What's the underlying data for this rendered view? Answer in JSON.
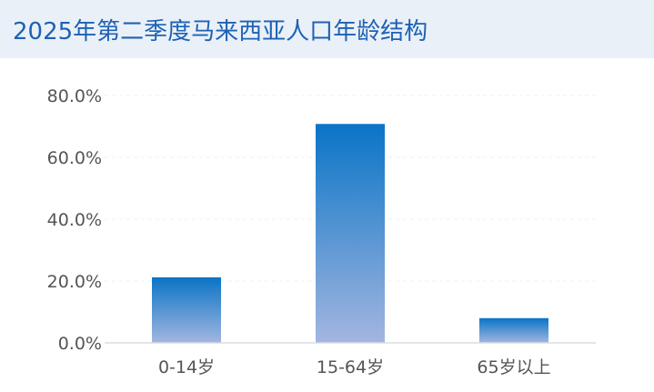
{
  "chart_data": {
    "type": "bar",
    "title": "2025年第二季度马来西亚人口年龄结构",
    "categories": [
      "0-14岁",
      "15-64岁",
      "65岁以上"
    ],
    "values": [
      21.2,
      70.8,
      8.0
    ],
    "yticks": [
      "0.0%",
      "20.0%",
      "40.0%",
      "60.0%",
      "80.0%"
    ],
    "ylim": [
      0,
      80
    ],
    "xlabel": "",
    "ylabel": "",
    "grid": true,
    "colors": {
      "bar_top": "#0a74c6",
      "bar_bottom": "#a3b6e0",
      "title": "#1d62b4",
      "header_bg": "#eaf0f8"
    }
  }
}
